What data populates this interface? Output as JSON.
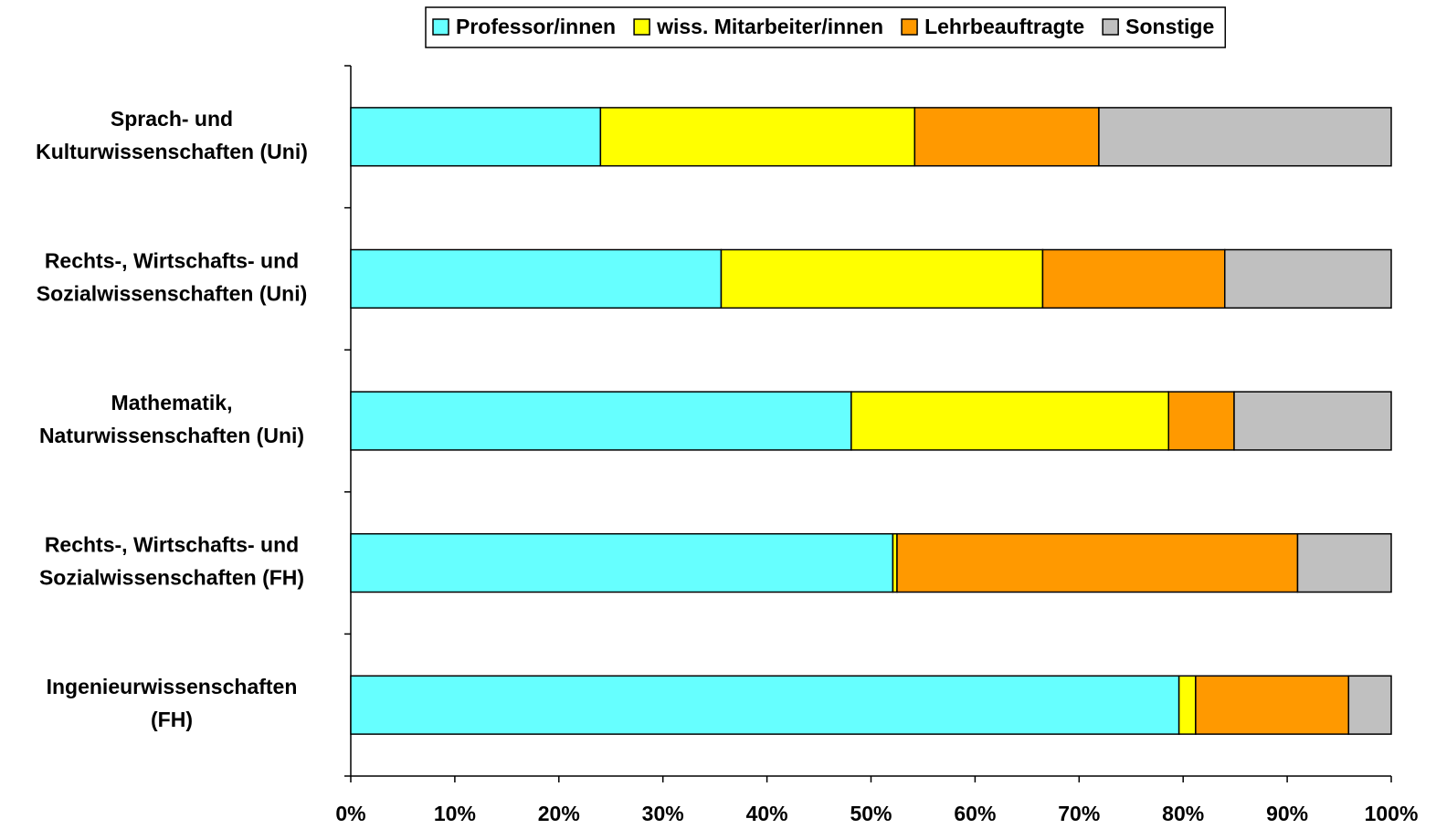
{
  "chart_data": {
    "type": "stacked_barh",
    "categories": [
      "Sprach- und\nKulturwissenschaften (Uni)",
      "Rechts-, Wirtschafts- und\nSozialwissenschaften (Uni)",
      "Mathematik,\nNaturwissenschaften (Uni)",
      "Rechts-, Wirtschafts- und\nSozialwissenschaften (FH)",
      "Ingenieurwissenschaften\n(FH)"
    ],
    "series": [
      {
        "name": "Professor/innen",
        "color": "#66ffff",
        "values": [
          24.0,
          35.6,
          48.1,
          52.1,
          79.6
        ]
      },
      {
        "name": "wiss. Mitarbeiter/innen",
        "color": "#ffff00",
        "values": [
          30.2,
          30.9,
          30.5,
          0.4,
          1.6
        ]
      },
      {
        "name": "Lehrbeauftragte",
        "color": "#ff9900",
        "values": [
          17.7,
          17.5,
          6.3,
          38.5,
          14.7
        ]
      },
      {
        "name": "Sonstige",
        "color": "#c0c0c0",
        "values": [
          28.1,
          16.0,
          15.1,
          9.0,
          4.1
        ]
      }
    ],
    "xlim": [
      0,
      100
    ],
    "xticks": [
      {
        "value": 0,
        "label": "0%"
      },
      {
        "value": 10,
        "label": "10%"
      },
      {
        "value": 20,
        "label": "20%"
      },
      {
        "value": 30,
        "label": "30%"
      },
      {
        "value": 40,
        "label": "40%"
      },
      {
        "value": 50,
        "label": "50%"
      },
      {
        "value": 60,
        "label": "60%"
      },
      {
        "value": 70,
        "label": "70%"
      },
      {
        "value": 80,
        "label": "80%"
      },
      {
        "value": 90,
        "label": "90%"
      },
      {
        "value": 100,
        "label": "100%"
      }
    ],
    "legend": "top"
  }
}
